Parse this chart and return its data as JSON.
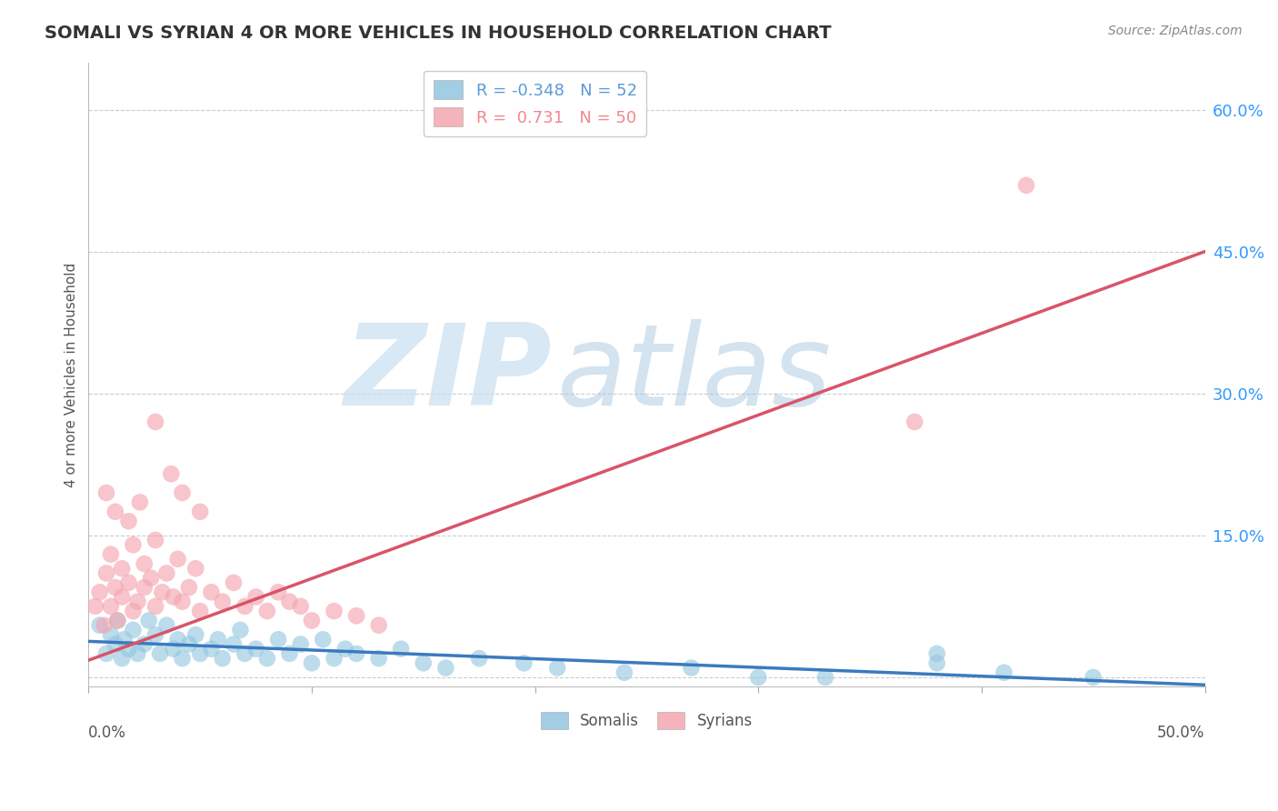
{
  "title": "SOMALI VS SYRIAN 4 OR MORE VEHICLES IN HOUSEHOLD CORRELATION CHART",
  "source": "Source: ZipAtlas.com",
  "ylabel": "4 or more Vehicles in Household",
  "yticks": [
    0.0,
    0.15,
    0.3,
    0.45,
    0.6
  ],
  "ytick_labels": [
    "",
    "15.0%",
    "30.0%",
    "45.0%",
    "60.0%"
  ],
  "xlim": [
    0.0,
    0.5
  ],
  "ylim": [
    -0.01,
    0.65
  ],
  "legend_entries": [
    {
      "label": "R = -0.348   N = 52",
      "color": "#5b9bd5"
    },
    {
      "label": "R =  0.731   N = 50",
      "color": "#f4868d"
    }
  ],
  "somali_color": "#92c5de",
  "syrian_color": "#f4a6b0",
  "somali_line_color": "#3a7bbf",
  "syrian_line_color": "#d9546a",
  "watermark_zip": "ZIP",
  "watermark_atlas": "atlas",
  "watermark_color_zip": "#c8dff0",
  "watermark_color_atlas": "#a8c8e0",
  "background_color": "#ffffff",
  "grid_color": "#cccccc",
  "somali_line_x": [
    0.0,
    0.5
  ],
  "somali_line_y": [
    0.038,
    -0.008
  ],
  "syrian_line_x": [
    0.0,
    0.5
  ],
  "syrian_line_y": [
    0.018,
    0.45
  ],
  "somali_points_x": [
    0.005,
    0.008,
    0.01,
    0.012,
    0.013,
    0.015,
    0.016,
    0.018,
    0.02,
    0.022,
    0.025,
    0.027,
    0.03,
    0.032,
    0.035,
    0.038,
    0.04,
    0.042,
    0.045,
    0.048,
    0.05,
    0.055,
    0.058,
    0.06,
    0.065,
    0.068,
    0.07,
    0.075,
    0.08,
    0.085,
    0.09,
    0.095,
    0.1,
    0.105,
    0.11,
    0.115,
    0.12,
    0.13,
    0.14,
    0.15,
    0.16,
    0.175,
    0.195,
    0.21,
    0.24,
    0.27,
    0.3,
    0.33,
    0.38,
    0.41,
    0.45,
    0.38
  ],
  "somali_points_y": [
    0.055,
    0.025,
    0.045,
    0.035,
    0.06,
    0.02,
    0.04,
    0.03,
    0.05,
    0.025,
    0.035,
    0.06,
    0.045,
    0.025,
    0.055,
    0.03,
    0.04,
    0.02,
    0.035,
    0.045,
    0.025,
    0.03,
    0.04,
    0.02,
    0.035,
    0.05,
    0.025,
    0.03,
    0.02,
    0.04,
    0.025,
    0.035,
    0.015,
    0.04,
    0.02,
    0.03,
    0.025,
    0.02,
    0.03,
    0.015,
    0.01,
    0.02,
    0.015,
    0.01,
    0.005,
    0.01,
    0.0,
    0.0,
    0.015,
    0.005,
    0.0,
    0.025
  ],
  "syrian_points_x": [
    0.003,
    0.005,
    0.007,
    0.008,
    0.01,
    0.01,
    0.012,
    0.013,
    0.015,
    0.015,
    0.018,
    0.02,
    0.02,
    0.022,
    0.025,
    0.025,
    0.028,
    0.03,
    0.03,
    0.033,
    0.035,
    0.038,
    0.04,
    0.042,
    0.045,
    0.048,
    0.05,
    0.055,
    0.06,
    0.065,
    0.07,
    0.075,
    0.08,
    0.085,
    0.09,
    0.095,
    0.1,
    0.11,
    0.12,
    0.13,
    0.008,
    0.012,
    0.018,
    0.023,
    0.03,
    0.037,
    0.042,
    0.05,
    0.37,
    0.42
  ],
  "syrian_points_y": [
    0.075,
    0.09,
    0.055,
    0.11,
    0.13,
    0.075,
    0.095,
    0.06,
    0.115,
    0.085,
    0.1,
    0.14,
    0.07,
    0.08,
    0.12,
    0.095,
    0.105,
    0.145,
    0.075,
    0.09,
    0.11,
    0.085,
    0.125,
    0.08,
    0.095,
    0.115,
    0.07,
    0.09,
    0.08,
    0.1,
    0.075,
    0.085,
    0.07,
    0.09,
    0.08,
    0.075,
    0.06,
    0.07,
    0.065,
    0.055,
    0.195,
    0.175,
    0.165,
    0.185,
    0.27,
    0.215,
    0.195,
    0.175,
    0.27,
    0.52
  ]
}
